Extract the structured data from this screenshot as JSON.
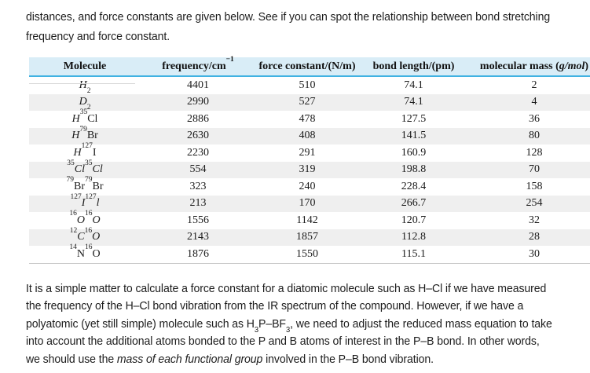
{
  "intro": {
    "lines": [
      [
        {
          "t": "distances, and force constants are given below. See if you can spot the relationship between bond stretching"
        }
      ],
      [
        {
          "t": "frequency and force constant."
        }
      ]
    ]
  },
  "table": {
    "colors": {
      "header_bg": "#d9edf7",
      "header_rule": "#41b2e2",
      "alt_row": "#efefef",
      "bottom_border": "#c9c9c9"
    },
    "columns": [
      {
        "name": "molecule",
        "segs": [
          {
            "t": "Molecule"
          }
        ]
      },
      {
        "name": "frequency",
        "segs": [
          {
            "t": "frequency/cm"
          },
          {
            "t": "−1",
            "s": "sup"
          }
        ]
      },
      {
        "name": "force-constant",
        "segs": [
          {
            "t": "force constant/(N/m)"
          }
        ]
      },
      {
        "name": "bond-length",
        "segs": [
          {
            "t": "bond length/(pm)"
          }
        ]
      },
      {
        "name": "molecular-mass",
        "segs": [
          {
            "t": "molecular mass ("
          },
          {
            "t": "g/mol",
            "s": "i"
          },
          {
            "t": ")"
          }
        ]
      }
    ],
    "rows": [
      {
        "molecule": [
          {
            "t": "H",
            "s": "i"
          },
          {
            "t": "2",
            "s": "sub"
          }
        ],
        "frequency": "4401",
        "force_constant": "510",
        "bond_length": "74.1",
        "molecular_mass": "2"
      },
      {
        "molecule": [
          {
            "t": "D",
            "s": "i"
          },
          {
            "t": "2",
            "s": "sub"
          }
        ],
        "frequency": "2990",
        "force_constant": "527",
        "bond_length": "74.1",
        "molecular_mass": "4"
      },
      {
        "molecule": [
          {
            "t": "H",
            "s": "i"
          },
          {
            "t": "35",
            "s": "sup"
          },
          {
            "t": "Cl"
          }
        ],
        "frequency": "2886",
        "force_constant": "478",
        "bond_length": "127.5",
        "molecular_mass": "36"
      },
      {
        "molecule": [
          {
            "t": "H",
            "s": "i"
          },
          {
            "t": "79",
            "s": "sup"
          },
          {
            "t": "Br"
          }
        ],
        "frequency": "2630",
        "force_constant": "408",
        "bond_length": "141.5",
        "molecular_mass": "80"
      },
      {
        "molecule": [
          {
            "t": "H",
            "s": "i"
          },
          {
            "t": "127",
            "s": "sup"
          },
          {
            "t": "I"
          }
        ],
        "frequency": "2230",
        "force_constant": "291",
        "bond_length": "160.9",
        "molecular_mass": "128"
      },
      {
        "molecule": [
          {
            "t": "35",
            "s": "sup"
          },
          {
            "t": "Cl",
            "s": "i"
          },
          {
            "t": "35",
            "s": "sup"
          },
          {
            "t": "Cl",
            "s": "i"
          }
        ],
        "frequency": "554",
        "force_constant": "319",
        "bond_length": "198.8",
        "molecular_mass": "70"
      },
      {
        "molecule": [
          {
            "t": "79",
            "s": "sup"
          },
          {
            "t": "Br"
          },
          {
            "t": "79",
            "s": "sup"
          },
          {
            "t": "Br"
          }
        ],
        "frequency": "323",
        "force_constant": "240",
        "bond_length": "228.4",
        "molecular_mass": "158"
      },
      {
        "molecule": [
          {
            "t": "127",
            "s": "sup"
          },
          {
            "t": "I",
            "s": "i"
          },
          {
            "t": "127",
            "s": "sup"
          },
          {
            "t": "l",
            "s": "i"
          }
        ],
        "frequency": "213",
        "force_constant": "170",
        "bond_length": "266.7",
        "molecular_mass": "254"
      },
      {
        "molecule": [
          {
            "t": "16",
            "s": "sup"
          },
          {
            "t": "O",
            "s": "i"
          },
          {
            "t": "16",
            "s": "sup"
          },
          {
            "t": "O",
            "s": "i"
          }
        ],
        "frequency": "1556",
        "force_constant": "1142",
        "bond_length": "120.7",
        "molecular_mass": "32"
      },
      {
        "molecule": [
          {
            "t": "12",
            "s": "sup"
          },
          {
            "t": "C",
            "s": "i"
          },
          {
            "t": "16",
            "s": "sup"
          },
          {
            "t": "O",
            "s": "i"
          }
        ],
        "frequency": "2143",
        "force_constant": "1857",
        "bond_length": "112.8",
        "molecular_mass": "28"
      },
      {
        "molecule": [
          {
            "t": "14",
            "s": "sup"
          },
          {
            "t": "N"
          },
          {
            "t": "16",
            "s": "sup"
          },
          {
            "t": "O"
          }
        ],
        "frequency": "1876",
        "force_constant": "1550",
        "bond_length": "115.1",
        "molecular_mass": "30"
      }
    ]
  },
  "outro": {
    "lines": [
      [
        {
          "t": "It is a simple matter to calculate a force constant for a diatomic molecule such as H–Cl if we have measured"
        }
      ],
      [
        {
          "t": "the frequency of the H–Cl bond vibration from the IR spectrum of the compound. However, if we have a"
        }
      ],
      [
        {
          "t": "polyatomic (yet still simple) molecule such as H"
        },
        {
          "t": "3",
          "s": "sub"
        },
        {
          "t": "P–BF"
        },
        {
          "t": "3",
          "s": "sub"
        },
        {
          "t": ", we need to adjust the reduced mass equation to take"
        }
      ],
      [
        {
          "t": "into account the additional atoms bonded to the P and B atoms of interest in the P–B bond. In other words,"
        }
      ],
      [
        {
          "t": "we should use the "
        },
        {
          "t": "mass of each functional group",
          "s": "i"
        },
        {
          "t": " involved in the P–B bond vibration."
        }
      ]
    ]
  }
}
